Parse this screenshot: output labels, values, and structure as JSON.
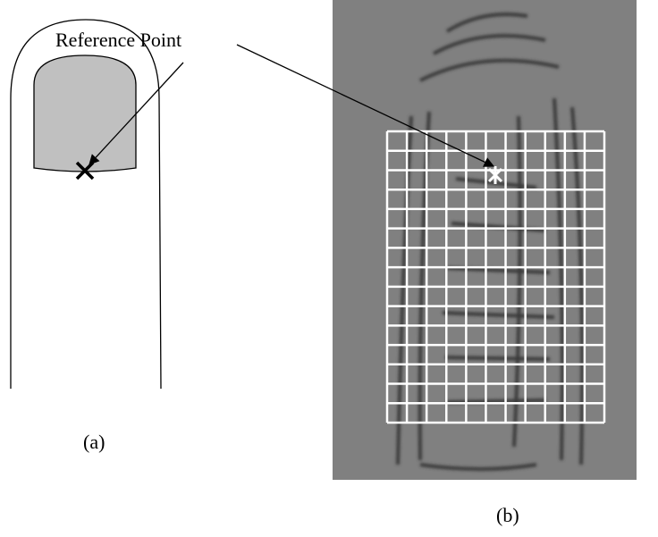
{
  "labels": {
    "reference_point": "Reference Point",
    "panel_a": "(a)",
    "panel_b": "(b)"
  }
}
